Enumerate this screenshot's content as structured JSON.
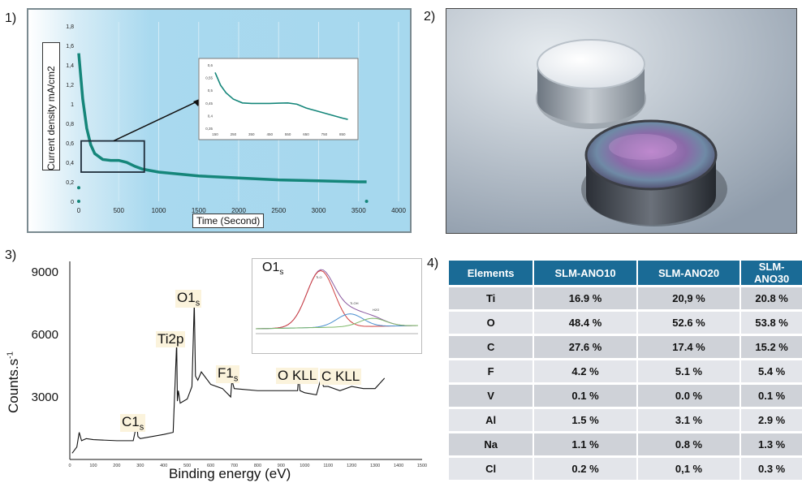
{
  "panels": {
    "p1": "1)",
    "p2": "2)",
    "p3": "3)",
    "p4": "4)"
  },
  "chart_data": [
    {
      "type": "line",
      "title": "",
      "ylabel": "Current density mA/cm2",
      "xlabel": "Time (Second)",
      "xlim": [
        0,
        4000
      ],
      "ylim": [
        0,
        1.8
      ],
      "x_ticks": [
        "0",
        "500",
        "1000",
        "1500",
        "2000",
        "2500",
        "3000",
        "3500",
        "4000"
      ],
      "y_ticks": [
        "0",
        "0,2",
        "0,4",
        "0,6",
        "0,8",
        "1",
        "1,2",
        "1,4",
        "1,6",
        "1,8"
      ],
      "series": [
        {
          "x": [
            0,
            50,
            100,
            150,
            200,
            300,
            400,
            500,
            600,
            700,
            800,
            1000,
            1500,
            2000,
            2500,
            3000,
            3500,
            3600
          ],
          "y": [
            1.52,
            1.05,
            0.75,
            0.58,
            0.49,
            0.43,
            0.42,
            0.42,
            0.4,
            0.36,
            0.33,
            0.3,
            0.26,
            0.24,
            0.22,
            0.21,
            0.2,
            0.2
          ]
        }
      ],
      "outlier_points": [
        {
          "x": 0,
          "y": 0.14
        },
        {
          "x": 0,
          "y": 0.0
        },
        {
          "x": 3600,
          "y": 0.0
        }
      ]
    },
    {
      "type": "line",
      "note_inset": true,
      "xlim": [
        150,
        900
      ],
      "ylim": [
        0.35,
        0.6
      ],
      "x_ticks": [
        "150",
        "250",
        "350",
        "450",
        "550",
        "650",
        "750",
        "850"
      ],
      "y_ticks": [
        "0,35",
        "0,4",
        "0,45",
        "0,5",
        "0,55",
        "0,6"
      ],
      "series": [
        {
          "x": [
            150,
            180,
            210,
            250,
            300,
            350,
            400,
            450,
            500,
            550,
            600,
            650,
            700,
            750,
            800,
            850,
            880
          ],
          "y": [
            0.57,
            0.52,
            0.49,
            0.465,
            0.45,
            0.448,
            0.448,
            0.448,
            0.449,
            0.45,
            0.445,
            0.43,
            0.42,
            0.41,
            0.4,
            0.39,
            0.385
          ]
        }
      ]
    },
    {
      "type": "line",
      "ylabel": "Counts.s-1",
      "xlabel": "Binding energy (eV)",
      "xlim": [
        0,
        1500
      ],
      "ylim": [
        0,
        9500
      ],
      "y_ticks": [
        "3000",
        "6000",
        "9000"
      ],
      "x_ticks": [
        "0",
        "100",
        "200",
        "300",
        "400",
        "500",
        "600",
        "700",
        "800",
        "900",
        "1000",
        "1100",
        "1200",
        "1300",
        "1400",
        "1500"
      ],
      "peaks": [
        "C1s",
        "Ti2p",
        "O1s",
        "F1s",
        "O KLL",
        "C KLL"
      ],
      "series": [
        {
          "x": [
            10,
            30,
            40,
            50,
            70,
            100,
            200,
            270,
            285,
            290,
            300,
            400,
            440,
            455,
            458,
            462,
            465,
            470,
            500,
            520,
            530,
            535,
            545,
            560,
            600,
            650,
            685,
            690,
            700,
            800,
            900,
            970,
            975,
            980,
            1000,
            1050,
            1070,
            1080,
            1100,
            1150,
            1200,
            1250,
            1300,
            1340
          ],
          "y": [
            300,
            600,
            1300,
            900,
            1000,
            950,
            900,
            900,
            1700,
            1100,
            1000,
            1200,
            1300,
            5600,
            2800,
            3300,
            3100,
            2700,
            2900,
            3500,
            7500,
            4000,
            3800,
            4200,
            3600,
            3400,
            3000,
            3800,
            3400,
            3300,
            3300,
            3300,
            4100,
            3300,
            3200,
            3100,
            3900,
            3500,
            3500,
            3300,
            3500,
            3400,
            3400,
            3900
          ]
        }
      ]
    },
    {
      "type": "line",
      "title": "O1s",
      "inset_labels": [
        "Ti-O",
        "Ti-OH",
        "H2O"
      ],
      "series": [
        {
          "name": "",
          "color": "#d04040"
        },
        {
          "name": "",
          "color": "#4a8fd0"
        },
        {
          "name": "",
          "color": "#7fb86a"
        },
        {
          "name": "",
          "color": "#8a5aa0"
        }
      ]
    },
    {
      "type": "table",
      "columns": [
        "Elements",
        "SLM-ANO10",
        "SLM-ANO20",
        "SLM-ANO30"
      ],
      "rows": [
        [
          "Ti",
          "16.9 %",
          "20,9 %",
          "20.8 %"
        ],
        [
          "O",
          "48.4 %",
          "52.6 %",
          "53.8 %"
        ],
        [
          "C",
          "27.6 %",
          "17.4 %",
          "15.2 %"
        ],
        [
          "F",
          "4.2 %",
          "5.1 %",
          "5.4 %"
        ],
        [
          "V",
          "0.1 %",
          "0.0 %",
          "0.1 %"
        ],
        [
          "Al",
          "1.5 %",
          "3.1 %",
          "2.9 %"
        ],
        [
          "Na",
          "1.1 %",
          "0.8 %",
          "1.3 %"
        ],
        [
          "Cl",
          "0.2 %",
          "0,1 %",
          "0.3 %"
        ]
      ]
    }
  ],
  "colors": {
    "curve": "#15867a",
    "table_header": "#1a6b96",
    "row_dark": "#cfd2d8",
    "row_light": "#e3e5ea"
  }
}
